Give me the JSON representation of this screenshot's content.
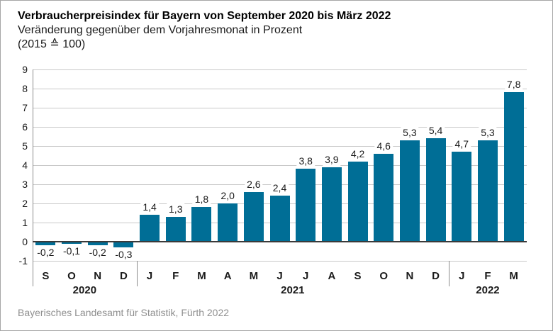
{
  "header": {
    "title": "Verbraucherpreisindex für Bayern von September 2020 bis März 2022",
    "subtitle": "Veränderung gegenüber dem Vorjahresmonat in Prozent",
    "basis": "(2015 ≙ 100)"
  },
  "footer": {
    "source": "Bayerisches Landesamt für Statistik, Fürth 2022"
  },
  "colors": {
    "bar": "#006e96",
    "gridline": "#c9c9c9",
    "zero_axis": "#3a3a3a",
    "axis_separator": "#8c8c8c",
    "text": "#1a1a1a",
    "footer_text": "#8f8f8f",
    "frame_border": "#a6a6a6"
  },
  "chart_data": {
    "type": "bar",
    "title": "Verbraucherpreisindex für Bayern von September 2020 bis März 2022",
    "subtitle": "Veränderung gegenüber dem Vorjahresmonat in Prozent (2015 ≙ 100)",
    "xlabel": "",
    "ylabel": "",
    "ylim": [
      -1,
      9
    ],
    "y_ticks": [
      "9",
      "8",
      "7",
      "6",
      "5",
      "4",
      "3",
      "2",
      "1",
      "0",
      "-1"
    ],
    "grid": true,
    "legend": false,
    "categories": [
      "S",
      "O",
      "N",
      "D",
      "J",
      "F",
      "M",
      "A",
      "M",
      "J",
      "J",
      "A",
      "S",
      "O",
      "N",
      "D",
      "J",
      "F",
      "M"
    ],
    "values": [
      -0.2,
      -0.1,
      -0.2,
      -0.3,
      1.4,
      1.3,
      1.8,
      2.0,
      2.6,
      2.4,
      3.8,
      3.9,
      4.2,
      4.6,
      5.3,
      5.4,
      4.7,
      5.3,
      7.8
    ],
    "value_labels": [
      "-0,2",
      "-0,1",
      "-0,2",
      "-0,3",
      "1,4",
      "1,3",
      "1,8",
      "2,0",
      "2,6",
      "2,4",
      "3,8",
      "3,9",
      "4,2",
      "4,6",
      "5,3",
      "5,4",
      "4,7",
      "5,3",
      "7,8"
    ],
    "year_groups": [
      {
        "label": "2020",
        "start": 0,
        "count": 4
      },
      {
        "label": "2021",
        "start": 4,
        "count": 12
      },
      {
        "label": "2022",
        "start": 16,
        "count": 3
      }
    ]
  }
}
